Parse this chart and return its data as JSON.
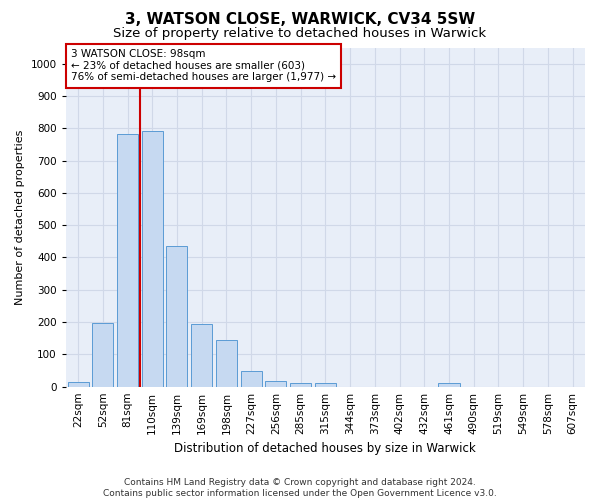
{
  "title": "3, WATSON CLOSE, WARWICK, CV34 5SW",
  "subtitle": "Size of property relative to detached houses in Warwick",
  "xlabel": "Distribution of detached houses by size in Warwick",
  "ylabel": "Number of detached properties",
  "bar_labels": [
    "22sqm",
    "52sqm",
    "81sqm",
    "110sqm",
    "139sqm",
    "169sqm",
    "198sqm",
    "227sqm",
    "256sqm",
    "285sqm",
    "315sqm",
    "344sqm",
    "373sqm",
    "402sqm",
    "432sqm",
    "461sqm",
    "490sqm",
    "519sqm",
    "549sqm",
    "578sqm",
    "607sqm"
  ],
  "bar_values": [
    15,
    197,
    783,
    790,
    435,
    193,
    143,
    48,
    18,
    10,
    10,
    0,
    0,
    0,
    0,
    10,
    0,
    0,
    0,
    0,
    0
  ],
  "bar_color": "#c6d9f1",
  "bar_edgecolor": "#5b9bd5",
  "property_line_color": "#cc0000",
  "property_line_x": 2.5,
  "annotation_line1": "3 WATSON CLOSE: 98sqm",
  "annotation_line2": "← 23% of detached houses are smaller (603)",
  "annotation_line3": "76% of semi-detached houses are larger (1,977) →",
  "annotation_box_color": "#ffffff",
  "annotation_box_edgecolor": "#cc0000",
  "ylim": [
    0,
    1050
  ],
  "yticks": [
    0,
    100,
    200,
    300,
    400,
    500,
    600,
    700,
    800,
    900,
    1000
  ],
  "grid_color": "#d0d8e8",
  "background_color": "#e8eef8",
  "footer_line1": "Contains HM Land Registry data © Crown copyright and database right 2024.",
  "footer_line2": "Contains public sector information licensed under the Open Government Licence v3.0.",
  "title_fontsize": 11,
  "subtitle_fontsize": 9.5,
  "xlabel_fontsize": 8.5,
  "ylabel_fontsize": 8,
  "tick_fontsize": 7.5,
  "annotation_fontsize": 7.5,
  "footer_fontsize": 6.5
}
